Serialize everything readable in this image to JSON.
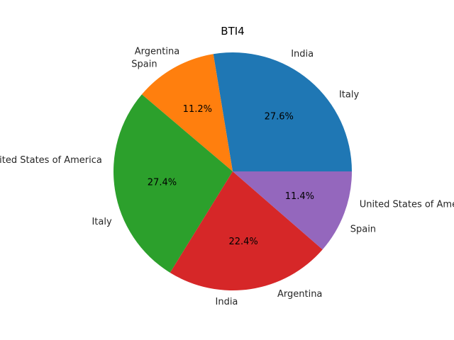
{
  "chart_data": {
    "type": "pie",
    "title": "BTI4",
    "values": [
      27.6,
      11.2,
      27.4,
      22.4,
      11.4
    ],
    "percent_labels": [
      "27.6%",
      "11.2%",
      "27.4%",
      "22.4%",
      "11.4%"
    ],
    "colors": [
      "#1f77b4",
      "#ff7f0e",
      "#2ca02c",
      "#d62728",
      "#9467bd"
    ],
    "slice_labels": [
      [
        "Italy",
        "India"
      ],
      [
        "Argentina",
        "Spain"
      ],
      [
        "United States of America",
        "Italy"
      ],
      [
        "India",
        "Argentina"
      ],
      [
        "Spain",
        "United States of America"
      ]
    ]
  }
}
